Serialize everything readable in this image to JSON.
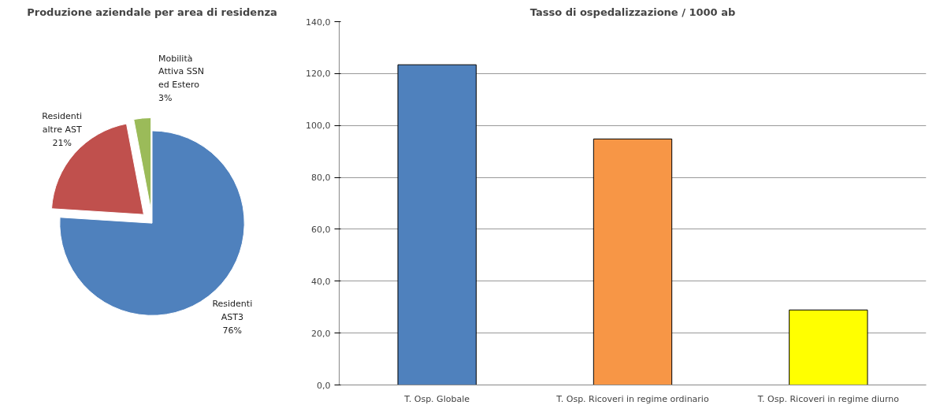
{
  "chart_data": [
    {
      "type": "pie",
      "title": "Produzione aziendale per area di residenza",
      "categories": [
        "Residenti\nAST3",
        "Residenti\naltre AST",
        "Mobilità\nAttiva SSN\ned Estero"
      ],
      "values": [
        76,
        21,
        3
      ],
      "colors": [
        "#4f81bd",
        "#c0504d",
        "#9bbb59"
      ],
      "value_labels": [
        "76%",
        "21%",
        "3%"
      ]
    },
    {
      "type": "bar",
      "title": "Tasso di ospedalizzazione / 1000 ab",
      "categories": [
        "T. Osp. Globale",
        "T. Osp. Ricoveri in regime ordinario",
        "T. Osp. Ricoveri in regime diurno"
      ],
      "values": [
        123.4,
        94.8,
        28.9
      ],
      "colors": [
        "#4f81bd",
        "#f79646",
        "#ffff00"
      ],
      "ylim": [
        0,
        140
      ],
      "yticks": [
        {
          "value": 0,
          "label": "0,0"
        },
        {
          "value": 20,
          "label": "20,0"
        },
        {
          "value": 40,
          "label": "40,0"
        },
        {
          "value": 60,
          "label": "60,0"
        },
        {
          "value": 80,
          "label": "80,0"
        },
        {
          "value": 100,
          "label": "100,0"
        },
        {
          "value": 120,
          "label": "120,0"
        },
        {
          "value": 140,
          "label": "140,0"
        }
      ],
      "grid": "y"
    }
  ]
}
